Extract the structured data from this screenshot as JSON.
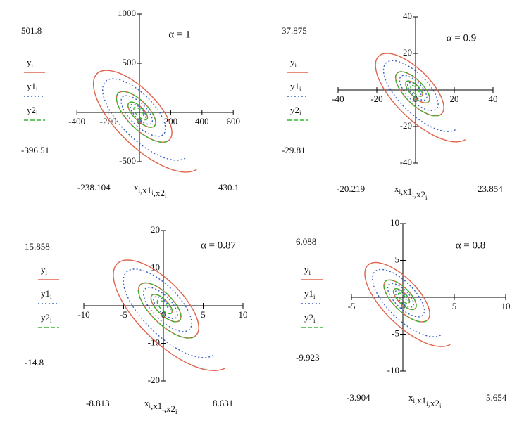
{
  "plots": [
    {
      "alpha": "α = 1",
      "ymax": 501.8,
      "ymin": -396.51,
      "xmin": -238.104,
      "xmax": 430.1,
      "xticks": [
        -400,
        -200,
        0,
        200,
        400,
        600
      ],
      "yticks": [
        1000,
        500,
        -500
      ]
    },
    {
      "alpha": "α = 0.9",
      "ymax": 37.875,
      "ymin": -29.81,
      "xmin": -20.219,
      "xmax": 23.854,
      "xticks": [
        -40,
        -20,
        0,
        20,
        40
      ],
      "yticks": [
        40,
        20,
        -20,
        -40
      ]
    },
    {
      "alpha": "α = 0.87",
      "ymax": 15.858,
      "ymin": -14.8,
      "xmin": -8.813,
      "xmax": 8.631,
      "xticks": [
        -10,
        -5,
        0,
        5,
        10
      ],
      "yticks": [
        20,
        10,
        -10,
        -20
      ]
    },
    {
      "alpha": "α = 0.8",
      "ymax": 6.088,
      "ymin": -9.923,
      "xmin": -3.904,
      "xmax": 5.654,
      "xticks": [
        -5,
        0,
        5,
        10
      ],
      "yticks": [
        10,
        5,
        -5,
        -10
      ]
    }
  ],
  "legend": [
    {
      "base": "y",
      "sub": "i"
    },
    {
      "base": "y1",
      "sub": "i"
    },
    {
      "base": "y2",
      "sub": "i"
    }
  ],
  "xlabel": [
    {
      "base": "x",
      "sub": "i"
    },
    {
      "base": ",x1",
      "sub": "i"
    },
    {
      "base": ",x2",
      "sub": "i"
    }
  ]
}
